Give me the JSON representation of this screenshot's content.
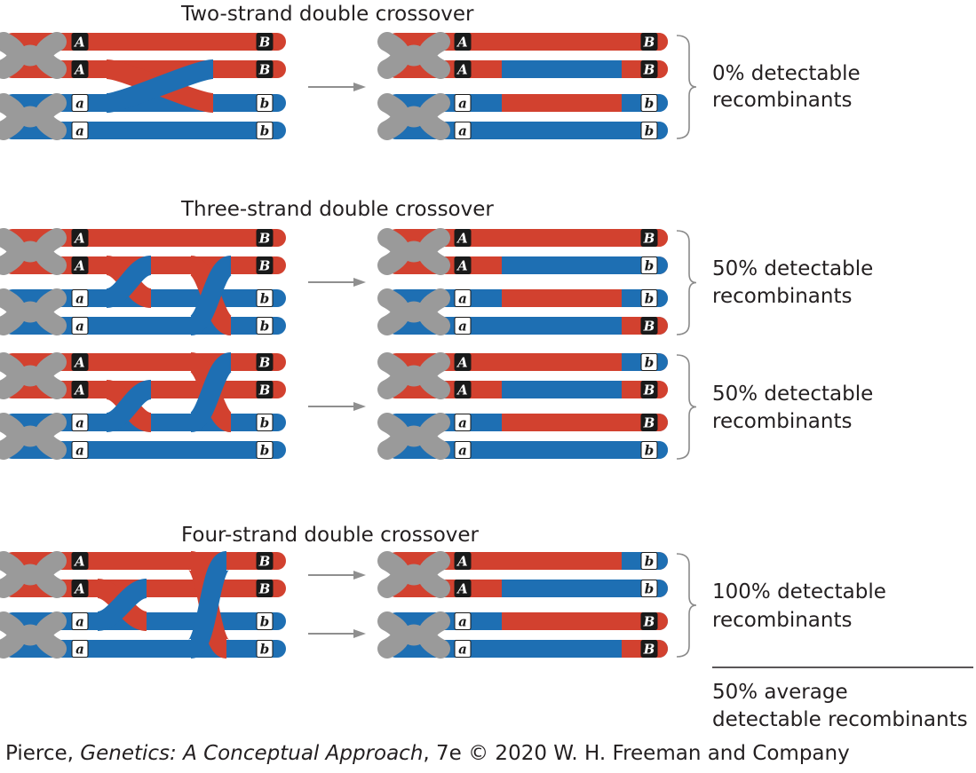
{
  "colors": {
    "red": "#d2412f",
    "blue": "#1e6fb3",
    "gray": "#9a9a9a",
    "arrow": "#8f8f8f",
    "text": "#231f20"
  },
  "panels": [
    {
      "title": "Two-strand double crossover",
      "result_lines": [
        "0% detectable",
        "recombinants"
      ],
      "before_alleles": [
        [
          "A",
          "B"
        ],
        [
          "A",
          "B"
        ],
        [
          "a",
          "b"
        ],
        [
          "a",
          "b"
        ]
      ],
      "after_alleles": [
        [
          "A",
          "B"
        ],
        [
          "A",
          "B"
        ],
        [
          "a",
          "b"
        ],
        [
          "a",
          "b"
        ]
      ]
    },
    {
      "title": "Three-strand double crossover",
      "result_lines": [
        "50% detectable",
        "recombinants"
      ],
      "before_alleles": [
        [
          "A",
          "B"
        ],
        [
          "A",
          "B"
        ],
        [
          "a",
          "b"
        ],
        [
          "a",
          "b"
        ]
      ],
      "after_alleles": [
        [
          "A",
          "B"
        ],
        [
          "A",
          "b"
        ],
        [
          "a",
          "b"
        ],
        [
          "a",
          "B"
        ]
      ]
    },
    {
      "title": "",
      "result_lines": [
        "50% detectable",
        "recombinants"
      ],
      "before_alleles": [
        [
          "A",
          "B"
        ],
        [
          "A",
          "B"
        ],
        [
          "a",
          "b"
        ],
        [
          "a",
          "b"
        ]
      ],
      "after_alleles": [
        [
          "A",
          "b"
        ],
        [
          "A",
          "B"
        ],
        [
          "a",
          "B"
        ],
        [
          "a",
          "b"
        ]
      ]
    },
    {
      "title": "Four-strand double crossover",
      "result_lines": [
        "100% detectable",
        "recombinants"
      ],
      "before_alleles": [
        [
          "A",
          "B"
        ],
        [
          "A",
          "B"
        ],
        [
          "a",
          "b"
        ],
        [
          "a",
          "b"
        ]
      ],
      "after_alleles": [
        [
          "A",
          "b"
        ],
        [
          "A",
          "b"
        ],
        [
          "a",
          "B"
        ],
        [
          "a",
          "B"
        ]
      ]
    }
  ],
  "summary_lines": [
    "50% average",
    "detectable recombinants"
  ],
  "credit": {
    "before": "Pierce, ",
    "italic": "Genetics: A Conceptual Approach",
    "after": ", 7e © 2020 W. H. Freeman and Company"
  }
}
